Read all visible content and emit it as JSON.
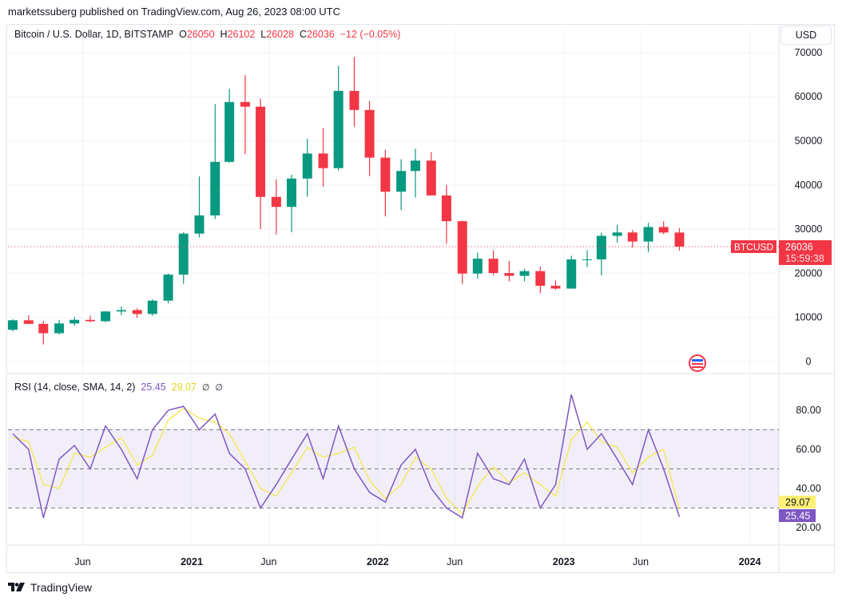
{
  "publisher": "marketssuberg published on TradingView.com, Aug 26, 2023 08:00 UTC",
  "legend": {
    "symbol": "Bitcoin / U.S. Dollar, 1D, BITSTAMP",
    "o_label": "O",
    "o": "26050",
    "h_label": "H",
    "h": "26102",
    "l_label": "L",
    "l": "26028",
    "c_label": "C",
    "c": "26036",
    "change": "−12 (−0.05%)"
  },
  "currency_button": "USD",
  "price_tag": {
    "symbol": "BTCUSD",
    "price": "26036",
    "countdown": "15:59:38"
  },
  "rsi_legend": {
    "title": "RSI (14, close, SMA, 14, 2)",
    "rsi": "25.45",
    "sma": "29.07",
    "icon1": "∅",
    "icon2": "∅"
  },
  "footer": {
    "brand": "TradingView"
  },
  "colors": {
    "up": "#089981",
    "down": "#f23645",
    "rsi": "#7e57c2",
    "rsi_sma": "#f5e94a",
    "band": "#7e57c2"
  },
  "chart_data": [
    {
      "type": "candlestick",
      "symbol": "BTCUSD",
      "ylim": [
        0,
        70000
      ],
      "y_ticks": [
        "70000",
        "60000",
        "50000",
        "40000",
        "30000",
        "20000",
        "10000",
        "0"
      ],
      "y_tick_values": [
        70000,
        60000,
        50000,
        40000,
        30000,
        20000,
        10000,
        0
      ],
      "last_price": 26036,
      "grid": true,
      "ohlc_monthly": [
        [
          "2020-01",
          7200,
          9580,
          6850,
          9350
        ],
        [
          "2020-02",
          9350,
          10500,
          8450,
          8540
        ],
        [
          "2020-03",
          8540,
          9180,
          3850,
          6420
        ],
        [
          "2020-04",
          6420,
          9450,
          6150,
          8630
        ],
        [
          "2020-05",
          8630,
          10070,
          8110,
          9450
        ],
        [
          "2020-06",
          9450,
          10380,
          8900,
          9140
        ],
        [
          "2020-07",
          9140,
          11450,
          8900,
          11350
        ],
        [
          "2020-08",
          11350,
          12480,
          10530,
          11660
        ],
        [
          "2020-09",
          11660,
          12070,
          9880,
          10780
        ],
        [
          "2020-10",
          10780,
          14100,
          10380,
          13800
        ],
        [
          "2020-11",
          13800,
          19950,
          13200,
          19700
        ],
        [
          "2020-12",
          19700,
          29300,
          17600,
          28990
        ],
        [
          "2021-01",
          28990,
          41950,
          28130,
          33110
        ],
        [
          "2021-02",
          33110,
          58350,
          32300,
          45240
        ],
        [
          "2021-03",
          45240,
          61780,
          45000,
          58800
        ],
        [
          "2021-04",
          58800,
          64900,
          47000,
          57750
        ],
        [
          "2021-05",
          57750,
          59600,
          30000,
          37300
        ],
        [
          "2021-06",
          37300,
          41300,
          28800,
          35040
        ],
        [
          "2021-07",
          35040,
          42300,
          29300,
          41460
        ],
        [
          "2021-08",
          41460,
          50500,
          37330,
          47130
        ],
        [
          "2021-09",
          47130,
          52920,
          39600,
          43820
        ],
        [
          "2021-10",
          43820,
          67000,
          43290,
          61320
        ],
        [
          "2021-11",
          61320,
          69000,
          53250,
          57000
        ],
        [
          "2021-12",
          57000,
          59050,
          42000,
          46200
        ],
        [
          "2022-01",
          46200,
          47990,
          32900,
          38480
        ],
        [
          "2022-02",
          38480,
          45820,
          34320,
          43180
        ],
        [
          "2022-03",
          43180,
          48190,
          37160,
          45530
        ],
        [
          "2022-04",
          45530,
          47440,
          37700,
          37640
        ],
        [
          "2022-05",
          37640,
          40000,
          26700,
          31800
        ],
        [
          "2022-06",
          31800,
          31960,
          17600,
          19940
        ],
        [
          "2022-07",
          19940,
          24670,
          18780,
          23300
        ],
        [
          "2022-08",
          23300,
          25200,
          19550,
          20050
        ],
        [
          "2022-09",
          20050,
          22800,
          18150,
          19420
        ],
        [
          "2022-10",
          19420,
          20990,
          18190,
          20490
        ],
        [
          "2022-11",
          20490,
          21480,
          15480,
          17160
        ],
        [
          "2022-12",
          17160,
          18400,
          16260,
          16540
        ],
        [
          "2023-01",
          16540,
          23960,
          16500,
          23140
        ],
        [
          "2023-02",
          23140,
          25250,
          21400,
          23150
        ],
        [
          "2023-03",
          23150,
          29200,
          19570,
          28480
        ],
        [
          "2023-04",
          28480,
          31000,
          26940,
          29250
        ],
        [
          "2023-05",
          29250,
          29830,
          25800,
          27200
        ],
        [
          "2023-06",
          27200,
          31430,
          24800,
          30480
        ],
        [
          "2023-07",
          30480,
          31800,
          28860,
          29230
        ],
        [
          "2023-08",
          29230,
          30230,
          25170,
          26036
        ]
      ]
    },
    {
      "type": "line",
      "title": "RSI (14, close, SMA, 14, 2)",
      "ylim": [
        10,
        95
      ],
      "y_ticks": [
        "80.00",
        "60.00",
        "40.00",
        "20.00"
      ],
      "y_tick_values": [
        80,
        60,
        40,
        20
      ],
      "bands": {
        "upper": 70,
        "middle": 50,
        "lower": 30
      },
      "x": [
        "2020-01",
        "2020-02",
        "2020-03",
        "2020-04",
        "2020-05",
        "2020-06",
        "2020-07",
        "2020-08",
        "2020-09",
        "2020-10",
        "2020-11",
        "2020-12",
        "2021-01",
        "2021-02",
        "2021-03",
        "2021-04",
        "2021-05",
        "2021-06",
        "2021-07",
        "2021-08",
        "2021-09",
        "2021-10",
        "2021-11",
        "2021-12",
        "2022-01",
        "2022-02",
        "2022-03",
        "2022-04",
        "2022-05",
        "2022-06",
        "2022-07",
        "2022-08",
        "2022-09",
        "2022-10",
        "2022-11",
        "2022-12",
        "2023-01",
        "2023-02",
        "2023-03",
        "2023-04",
        "2023-05",
        "2023-06",
        "2023-07",
        "2023-08"
      ],
      "series": [
        {
          "name": "RSI",
          "values": [
            68,
            60,
            25,
            55,
            62,
            50,
            72,
            60,
            45,
            70,
            80,
            82,
            70,
            78,
            58,
            50,
            30,
            42,
            55,
            68,
            45,
            72,
            50,
            38,
            33,
            52,
            60,
            40,
            30,
            25,
            58,
            45,
            42,
            55,
            30,
            42,
            88,
            60,
            68,
            55,
            42,
            70,
            50,
            25.45
          ]
        },
        {
          "name": "SMA",
          "values": [
            66,
            64,
            42,
            40,
            58,
            56,
            61,
            66,
            52,
            57,
            75,
            81,
            76,
            74,
            68,
            54,
            40,
            36,
            48,
            61,
            56,
            58,
            61,
            44,
            35,
            42,
            56,
            50,
            35,
            27,
            41,
            51,
            43,
            48,
            42,
            36,
            65,
            74,
            64,
            61,
            48,
            56,
            60,
            29.07
          ]
        }
      ],
      "current": {
        "rsi": 25.45,
        "sma": 29.07
      }
    }
  ],
  "x_axis": {
    "ticks": [
      {
        "label": "Jun",
        "date": "2020-06-01",
        "bold": false
      },
      {
        "label": "2021",
        "date": "2021-01-01",
        "bold": true
      },
      {
        "label": "Jun",
        "date": "2021-06-01",
        "bold": false
      },
      {
        "label": "2022",
        "date": "2022-01-01",
        "bold": true
      },
      {
        "label": "Jun",
        "date": "2022-06-01",
        "bold": false
      },
      {
        "label": "2023",
        "date": "2023-01-01",
        "bold": true
      },
      {
        "label": "Jun",
        "date": "2023-06-01",
        "bold": false
      },
      {
        "label": "2024",
        "date": "2024-01-01",
        "bold": true
      }
    ]
  }
}
